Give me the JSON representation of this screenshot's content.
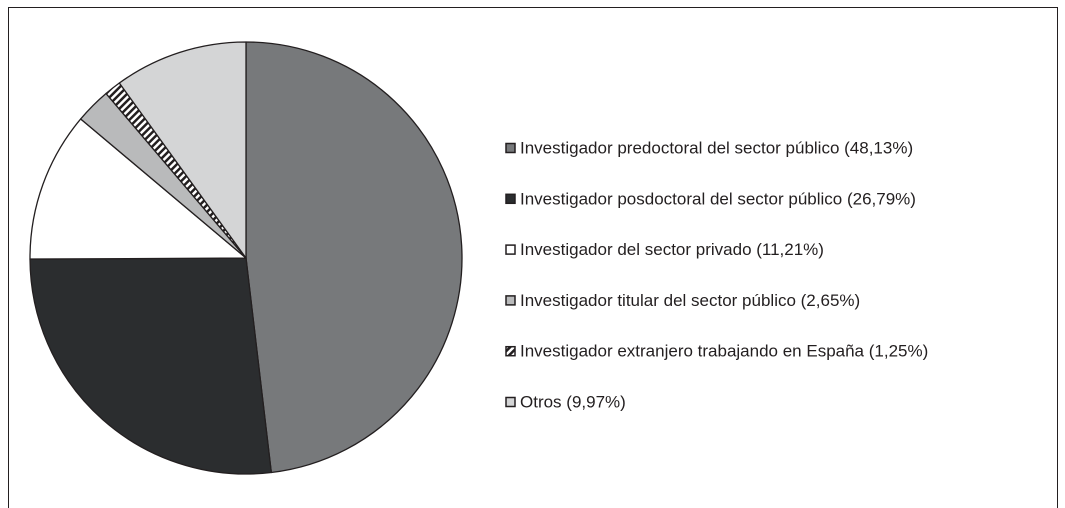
{
  "chart_data": {
    "type": "pie",
    "categories": [
      "Investigador predoctoral del sector público (48,13%)",
      "Investigador posdoctoral del sector público (26,79%)",
      "Investigador del sector privado (11,21%)",
      "Investigador titular del sector público (2,65%)",
      "Investigador extranjero trabajando en España (1,25%)",
      "Otros (9,97%)"
    ],
    "values": [
      48.13,
      26.79,
      11.21,
      2.65,
      1.25,
      9.97
    ],
    "colors": [
      "#77797b",
      "#2b2d2f",
      "#ffffff",
      "#b9babb",
      "#ffffff",
      "#d4d5d6"
    ],
    "patterns": [
      "solid",
      "solid",
      "solid",
      "solid",
      "hatch",
      "solid"
    ],
    "legend": "right"
  }
}
